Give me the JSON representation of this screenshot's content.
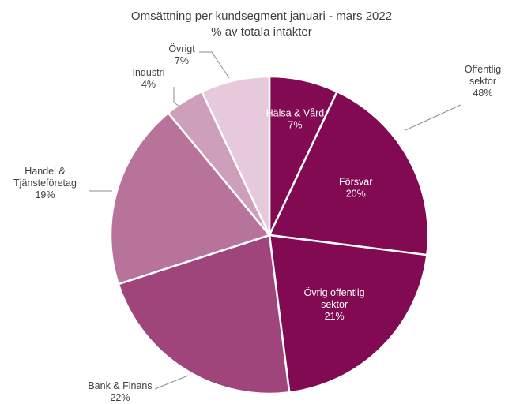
{
  "chart_data": {
    "type": "pie",
    "title": "Omsättning per kundsegment januari - mars 2022",
    "subtitle": "% av totala intäkter",
    "slices": [
      {
        "name": "Hälsa & Vård",
        "value": 7,
        "value_label": "7%",
        "color": "#820a52"
      },
      {
        "name": "Försvar",
        "value": 20,
        "value_label": "20%",
        "color": "#820a52"
      },
      {
        "name": "Övrig offentlig sektor",
        "value": 21,
        "value_label": "21%",
        "color": "#820a52"
      },
      {
        "name": "Bank & Finans",
        "value": 22,
        "value_label": "22%",
        "color": "#a0457c"
      },
      {
        "name": "Handel & Tjänsteföretag",
        "value": 19,
        "value_label": "19%",
        "color": "#b8739a"
      },
      {
        "name": "Industri",
        "value": 4,
        "value_label": "4%",
        "color": "#cd9fba"
      },
      {
        "name": "Övrigt",
        "value": 7,
        "value_label": "7%",
        "color": "#e6cadb"
      }
    ],
    "group_annotation": {
      "label": "Offentlig sektor",
      "value_label": "48%"
    },
    "start_angle": "12 o'clock",
    "direction": "clockwise",
    "legend": "none"
  }
}
